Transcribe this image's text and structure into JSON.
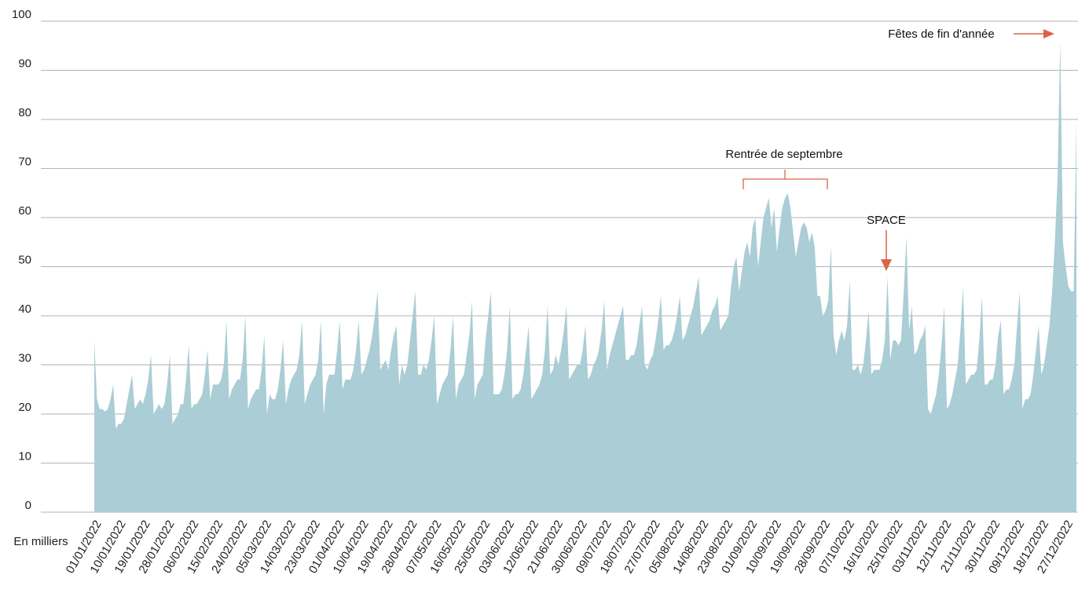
{
  "chart_data": {
    "type": "area",
    "ylabel": "En milliers",
    "annotations": [
      "Fêtes de fin d'année",
      "Rentrée de septembre",
      "SPACE"
    ],
    "color": "#abcdd5",
    "ylim": [
      0,
      100
    ],
    "yticks": [
      0,
      10,
      20,
      30,
      40,
      50,
      60,
      70,
      80,
      90,
      100
    ],
    "grid": true,
    "categories": [
      "01/01/2022",
      null,
      null,
      null,
      null,
      null,
      null,
      null,
      null,
      "10/01/2022",
      null,
      null,
      null,
      null,
      null,
      null,
      null,
      null,
      "19/01/2022",
      null,
      null,
      null,
      null,
      null,
      null,
      null,
      null,
      "28/01/2022",
      null,
      null,
      null,
      null,
      null,
      null,
      null,
      null,
      "06/02/2022",
      null,
      null,
      null,
      null,
      null,
      null,
      null,
      null,
      "15/02/2022",
      null,
      null,
      null,
      null,
      null,
      null,
      null,
      null,
      "24/02/2022",
      null,
      null,
      null,
      null,
      null,
      null,
      null,
      null,
      "05/03/2022",
      null,
      null,
      null,
      null,
      null,
      null,
      null,
      null,
      "14/03/2022",
      null,
      null,
      null,
      null,
      null,
      null,
      null,
      null,
      "23/03/2022",
      null,
      null,
      null,
      null,
      null,
      null,
      null,
      null,
      "01/04/2022",
      null,
      null,
      null,
      null,
      null,
      null,
      null,
      null,
      "10/04/2022",
      null,
      null,
      null,
      null,
      null,
      null,
      null,
      null,
      "19/04/2022",
      null,
      null,
      null,
      null,
      null,
      null,
      null,
      null,
      "28/04/2022",
      null,
      null,
      null,
      null,
      null,
      null,
      null,
      null,
      "07/05/2022",
      null,
      null,
      null,
      null,
      null,
      null,
      null,
      null,
      "16/05/2022",
      null,
      null,
      null,
      null,
      null,
      null,
      null,
      null,
      "25/05/2022",
      null,
      null,
      null,
      null,
      null,
      null,
      null,
      null,
      "03/06/2022",
      null,
      null,
      null,
      null,
      null,
      null,
      null,
      null,
      "12/06/2022",
      null,
      null,
      null,
      null,
      null,
      null,
      null,
      null,
      "21/06/2022",
      null,
      null,
      null,
      null,
      null,
      null,
      null,
      null,
      "30/06/2022",
      null,
      null,
      null,
      null,
      null,
      null,
      null,
      null,
      "09/07/2022",
      null,
      null,
      null,
      null,
      null,
      null,
      null,
      null,
      "18/07/2022",
      null,
      null,
      null,
      null,
      null,
      null,
      null,
      null,
      "27/07/2022",
      null,
      null,
      null,
      null,
      null,
      null,
      null,
      null,
      "05/08/2022",
      null,
      null,
      null,
      null,
      null,
      null,
      null,
      null,
      "14/08/2022",
      null,
      null,
      null,
      null,
      null,
      null,
      null,
      null,
      "23/08/2022",
      null,
      null,
      null,
      null,
      null,
      null,
      null,
      null,
      "01/09/2022",
      null,
      null,
      null,
      null,
      null,
      null,
      null,
      null,
      "10/09/2022",
      null,
      null,
      null,
      null,
      null,
      null,
      null,
      null,
      "19/09/2022",
      null,
      null,
      null,
      null,
      null,
      null,
      null,
      null,
      "28/09/2022",
      null,
      null,
      null,
      null,
      null,
      null,
      null,
      null,
      "07/10/2022",
      null,
      null,
      null,
      null,
      null,
      null,
      null,
      null,
      "16/10/2022",
      null,
      null,
      null,
      null,
      null,
      null,
      null,
      null,
      "25/10/2022",
      null,
      null,
      null,
      null,
      null,
      null,
      null,
      null,
      "03/11/2022",
      null,
      null,
      null,
      null,
      null,
      null,
      null,
      null,
      "12/11/2022",
      null,
      null,
      null,
      null,
      null,
      null,
      null,
      null,
      "21/11/2022",
      null,
      null,
      null,
      null,
      null,
      null,
      null,
      null,
      "30/11/2022",
      null,
      null,
      null,
      null,
      null,
      null,
      null,
      null,
      "09/12/2022",
      null,
      null,
      null,
      null,
      null,
      null,
      null,
      null,
      "18/12/2022",
      null,
      null,
      null,
      null,
      null,
      null,
      null,
      null,
      "27/12/2022",
      null,
      null,
      null,
      null
    ],
    "values": [
      35,
      23,
      21,
      21,
      20.5,
      21,
      23,
      26,
      17,
      18,
      18,
      19,
      22,
      25,
      28,
      21,
      22,
      23,
      22,
      24,
      27,
      32,
      20,
      21,
      22,
      21,
      22,
      26,
      32,
      18,
      19,
      20,
      22,
      22,
      27,
      34,
      21,
      22,
      22,
      23,
      24,
      28,
      33,
      23,
      26,
      26,
      26,
      27,
      30,
      39,
      23,
      25,
      26,
      27,
      27,
      31,
      40,
      21,
      23,
      24,
      25,
      25,
      29,
      36,
      20,
      24,
      23,
      23,
      25,
      29,
      35,
      22,
      25,
      27,
      28,
      29,
      32,
      39,
      22,
      24,
      26,
      27,
      28,
      31,
      39,
      20,
      26,
      28,
      28,
      28,
      33,
      39,
      25,
      27,
      27,
      27,
      29,
      33,
      39,
      28,
      29,
      31,
      33,
      36,
      40,
      45,
      29,
      30,
      31,
      29,
      33,
      36,
      38,
      26,
      30,
      28,
      30,
      35,
      40,
      45,
      28,
      28,
      30,
      29,
      31,
      35,
      40,
      22,
      24,
      26,
      27,
      28,
      33,
      40,
      23,
      26,
      27,
      28,
      32,
      36,
      43,
      23,
      26,
      27,
      28,
      35,
      40,
      45,
      24,
      24,
      24,
      25,
      28,
      33,
      42,
      23,
      24,
      24,
      25,
      28,
      33,
      38,
      23,
      24,
      25,
      26,
      28,
      33,
      42,
      28,
      29,
      32,
      30,
      33,
      37,
      42,
      27,
      28,
      29,
      30,
      30,
      33,
      38,
      27,
      28,
      30,
      31,
      33,
      37,
      43,
      29,
      32,
      34,
      36,
      38,
      40,
      42,
      31,
      31,
      32,
      32,
      34,
      38,
      42,
      30,
      29,
      31,
      32,
      35,
      39,
      44,
      33,
      34,
      34,
      35,
      37,
      40,
      44,
      35,
      36,
      38,
      40,
      42,
      45,
      48,
      36,
      37,
      38,
      39,
      41,
      42,
      44,
      37,
      38,
      39,
      40,
      46,
      50,
      52,
      45,
      49,
      53,
      55,
      52,
      58,
      60,
      50,
      55,
      60,
      62,
      64,
      58,
      62,
      53,
      58,
      62,
      64,
      65,
      62,
      57,
      52,
      55,
      58,
      59,
      58,
      55,
      57,
      54,
      44,
      44,
      40,
      41,
      43,
      54,
      36,
      32,
      35,
      37,
      35,
      38,
      47,
      29,
      29,
      30,
      28,
      30,
      35,
      41,
      28,
      29,
      29,
      29,
      31,
      35,
      48,
      31,
      35,
      35,
      34,
      35,
      45,
      56,
      37,
      42,
      32,
      33,
      35,
      36,
      38,
      21,
      20,
      22,
      24,
      28,
      34,
      42,
      21,
      22,
      24,
      27,
      30,
      37,
      46,
      26,
      27,
      28,
      28,
      29,
      35,
      44,
      26,
      26,
      27,
      27,
      30,
      36,
      39,
      24,
      25,
      25,
      27,
      30,
      38,
      45,
      21,
      23,
      23,
      24,
      28,
      33,
      38,
      28,
      30,
      34,
      38,
      45,
      55,
      68,
      96,
      55,
      50,
      46,
      45,
      45,
      80
    ]
  }
}
